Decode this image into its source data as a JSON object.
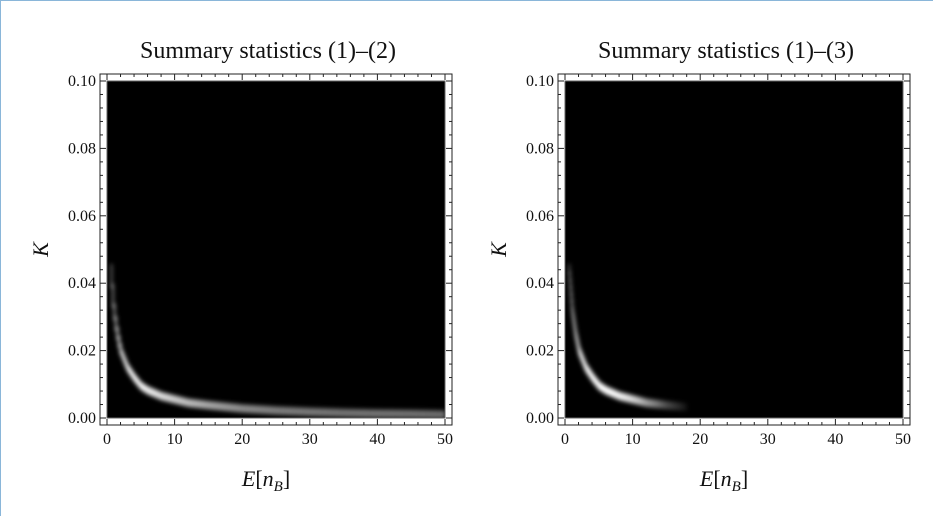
{
  "colors": {
    "background": "#000000",
    "density": "#ffffff",
    "frame": "#ffffff"
  },
  "chart_data": [
    {
      "type": "heatmap",
      "title": "Summary statistics (1)–(2)",
      "xlabel": {
        "main": "E",
        "open": "[",
        "var": "n",
        "sub": "B",
        "close": "]"
      },
      "ylabel": "K",
      "xlim": [
        0,
        50
      ],
      "ylim": [
        0,
        0.1
      ],
      "xticks": [
        0,
        10,
        20,
        30,
        40,
        50
      ],
      "xticklabels": [
        "0",
        "10",
        "20",
        "30",
        "40",
        "50"
      ],
      "yticks": [
        0,
        0.02,
        0.04,
        0.06,
        0.08,
        0.1
      ],
      "yticklabels": [
        "0.00",
        "0.02",
        "0.04",
        "0.06",
        "0.08",
        "0.10"
      ],
      "grid": false,
      "ridge": {
        "x": [
          0.5,
          1,
          1.5,
          2,
          3,
          4,
          5,
          6,
          8,
          10,
          12,
          15,
          20,
          25,
          30,
          35,
          40,
          45,
          50
        ],
        "y": [
          0.045,
          0.032,
          0.025,
          0.02,
          0.015,
          0.012,
          0.0095,
          0.0082,
          0.0065,
          0.0055,
          0.0045,
          0.0038,
          0.0028,
          0.0022,
          0.0018,
          0.0015,
          0.0013,
          0.0012,
          0.001
        ],
        "intensity": [
          0.35,
          0.55,
          0.75,
          0.9,
          1.0,
          1.0,
          0.95,
          0.9,
          0.8,
          0.72,
          0.65,
          0.55,
          0.45,
          0.4,
          0.38,
          0.36,
          0.36,
          0.35,
          0.34
        ]
      }
    },
    {
      "type": "heatmap",
      "title": "Summary statistics (1)–(3)",
      "xlabel": {
        "main": "E",
        "open": "[",
        "var": "n",
        "sub": "B",
        "close": "]"
      },
      "ylabel": "K",
      "xlim": [
        0,
        50
      ],
      "ylim": [
        0,
        0.1
      ],
      "xticks": [
        0,
        10,
        20,
        30,
        40,
        50
      ],
      "xticklabels": [
        "0",
        "10",
        "20",
        "30",
        "40",
        "50"
      ],
      "yticks": [
        0,
        0.02,
        0.04,
        0.06,
        0.08,
        0.1
      ],
      "yticklabels": [
        "0.00",
        "0.02",
        "0.04",
        "0.06",
        "0.08",
        "0.10"
      ],
      "grid": false,
      "ridge": {
        "x": [
          0.5,
          1,
          1.5,
          2,
          3,
          4,
          5,
          6,
          8,
          10,
          12,
          15,
          18
        ],
        "y": [
          0.045,
          0.032,
          0.025,
          0.02,
          0.015,
          0.012,
          0.0095,
          0.0082,
          0.0065,
          0.0055,
          0.0045,
          0.0038,
          0.0032
        ],
        "intensity": [
          0.35,
          0.55,
          0.75,
          0.9,
          1.0,
          1.0,
          0.92,
          0.8,
          0.6,
          0.42,
          0.25,
          0.1,
          0.02
        ]
      }
    }
  ]
}
